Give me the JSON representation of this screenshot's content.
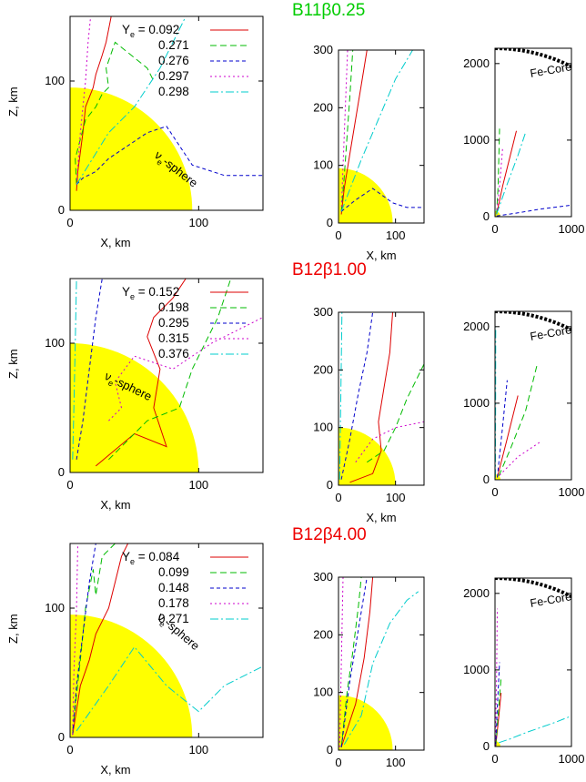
{
  "figure": {
    "x_label": "X, km",
    "z_label": "Z, km",
    "sphere_label": "ν",
    "sphere_sub": "e",
    "sphere_suffix": "-sphere",
    "fe_core_label": "Fe-Core",
    "ye_label": "Y",
    "ye_sub": "e",
    "ye_eq": " = ",
    "series_colors": [
      "#dd0000",
      "#00bb00",
      "#0000cc",
      "#cc00cc",
      "#00cccc"
    ],
    "sphere_color": "#ffff00",
    "panel_titles": [
      "B11β0.25",
      "B12β1.00",
      "B12β4.00"
    ],
    "title_colors": [
      "#00cc00",
      "#ee0000",
      "#ee0000"
    ],
    "ye_values": [
      [
        "0.092",
        "0.271",
        "0.276",
        "0.297",
        "0.298"
      ],
      [
        "0.152",
        "0.198",
        "0.295",
        "0.315",
        "0.376"
      ],
      [
        "0.084",
        "0.099",
        "0.148",
        "0.178",
        "0.271"
      ]
    ],
    "ticks": {
      "zoom_x": [
        "0",
        "100"
      ],
      "zoom_y": [
        "0",
        "100"
      ],
      "mid_x": [
        "0",
        "100"
      ],
      "mid_y": [
        "0",
        "100",
        "200",
        "300"
      ],
      "wide_x": [
        "0",
        "1000"
      ],
      "wide_y": [
        "0",
        "1000",
        "2000"
      ]
    }
  },
  "chart_data": [
    {
      "type": "line",
      "title": "B11β0.25",
      "xlabel": "X, km",
      "ylabel": "Z, km",
      "xlim": [
        0,
        150
      ],
      "ylim": [
        0,
        150
      ],
      "region": {
        "name": "ν_e-sphere",
        "radius_km": 95
      },
      "series": [
        {
          "name": "Ye = 0.092",
          "x": [
            5,
            6,
            10,
            12,
            18,
            20,
            25,
            28,
            30,
            32
          ],
          "y": [
            15,
            30,
            60,
            80,
            95,
            105,
            120,
            130,
            140,
            150
          ]
        },
        {
          "name": "Ye = 0.271",
          "x": [
            5,
            4,
            8,
            12,
            20,
            25,
            30,
            28,
            35,
            60,
            65
          ],
          "y": [
            20,
            40,
            55,
            70,
            80,
            90,
            95,
            110,
            130,
            110,
            100
          ]
        },
        {
          "name": "Ye = 0.276",
          "x": [
            5,
            10,
            20,
            30,
            45,
            60,
            75,
            95,
            120,
            150
          ],
          "y": [
            20,
            25,
            30,
            40,
            50,
            60,
            65,
            35,
            27,
            27
          ]
        },
        {
          "name": "Ye = 0.297",
          "x": [
            5,
            8,
            12,
            14,
            16
          ],
          "y": [
            20,
            60,
            100,
            130,
            150
          ]
        },
        {
          "name": "Ye = 0.298",
          "x": [
            5,
            30,
            50,
            60,
            70,
            80,
            90
          ],
          "y": [
            20,
            60,
            80,
            95,
            110,
            130,
            150
          ]
        }
      ]
    },
    {
      "type": "line",
      "title": "B11β0.25",
      "xlabel": "X, km",
      "ylabel": "",
      "xlim": [
        0,
        150
      ],
      "ylim": [
        0,
        300
      ],
      "region": {
        "name": "ν_e-sphere",
        "radius_km": 95
      },
      "series": [
        {
          "name": "Ye = 0.092",
          "x": [
            5,
            10,
            20,
            30,
            40,
            45,
            50
          ],
          "y": [
            15,
            60,
            120,
            180,
            240,
            270,
            300
          ]
        },
        {
          "name": "Ye = 0.271",
          "x": [
            5,
            10,
            15,
            20,
            25
          ],
          "y": [
            20,
            80,
            150,
            220,
            300
          ]
        },
        {
          "name": "Ye = 0.276",
          "x": [
            5,
            30,
            60,
            95,
            120,
            150
          ],
          "y": [
            20,
            40,
            60,
            35,
            27,
            27
          ]
        },
        {
          "name": "Ye = 0.297",
          "x": [
            5,
            8,
            12,
            16
          ],
          "y": [
            20,
            100,
            200,
            300
          ]
        },
        {
          "name": "Ye = 0.298",
          "x": [
            5,
            40,
            70,
            100,
            130
          ],
          "y": [
            20,
            110,
            180,
            250,
            300
          ]
        }
      ]
    },
    {
      "type": "line",
      "title": "B11β0.25",
      "xlabel": "",
      "ylabel": "",
      "xlim": [
        0,
        1000
      ],
      "ylim": [
        0,
        2200
      ],
      "region": {
        "name": "Fe-Core",
        "radius_km": 2200
      },
      "series": [
        {
          "name": "Ye = 0.092",
          "x": [
            20,
            100,
            200,
            280
          ],
          "y": [
            30,
            400,
            800,
            1120
          ]
        },
        {
          "name": "Ye = 0.271",
          "x": [
            20,
            40,
            60
          ],
          "y": [
            30,
            400,
            1150
          ]
        },
        {
          "name": "Ye = 0.276",
          "x": [
            20,
            300,
            600,
            1000
          ],
          "y": [
            10,
            50,
            100,
            150
          ]
        },
        {
          "name": "Ye = 0.297",
          "x": [
            20,
            60,
            100
          ],
          "y": [
            30,
            400,
            900
          ]
        },
        {
          "name": "Ye = 0.298",
          "x": [
            20,
            150,
            300,
            400
          ],
          "y": [
            30,
            400,
            800,
            1100
          ]
        }
      ]
    },
    {
      "type": "line",
      "title": "B12β1.00",
      "xlabel": "X, km",
      "ylabel": "Z, km",
      "xlim": [
        0,
        150
      ],
      "ylim": [
        0,
        150
      ],
      "region": {
        "name": "ν_e-sphere",
        "radius_km": 100
      },
      "series": [
        {
          "name": "Ye = 0.152",
          "x": [
            20,
            50,
            75,
            65,
            70,
            60,
            65,
            80,
            90
          ],
          "y": [
            5,
            30,
            20,
            50,
            80,
            105,
            120,
            135,
            150
          ]
        },
        {
          "name": "Ye = 0.198",
          "x": [
            30,
            60,
            85,
            95,
            105,
            115,
            120,
            125
          ],
          "y": [
            10,
            40,
            50,
            80,
            100,
            120,
            135,
            150
          ]
        },
        {
          "name": "Ye = 0.295",
          "x": [
            5,
            10,
            15,
            20,
            25
          ],
          "y": [
            10,
            40,
            80,
            120,
            150
          ]
        },
        {
          "name": "Ye = 0.315",
          "x": [
            30,
            40,
            35,
            50,
            80,
            110,
            140,
            150
          ],
          "y": [
            40,
            50,
            70,
            90,
            80,
            100,
            115,
            120
          ]
        },
        {
          "name": "Ye = 0.376",
          "x": [
            2,
            3,
            4,
            5
          ],
          "y": [
            10,
            50,
            100,
            150
          ]
        }
      ]
    },
    {
      "type": "line",
      "title": "B12β1.00",
      "xlabel": "X, km",
      "ylabel": "",
      "xlim": [
        0,
        150
      ],
      "ylim": [
        0,
        300
      ],
      "region": {
        "name": "ν_e-sphere",
        "radius_km": 100
      },
      "series": [
        {
          "name": "Ye = 0.152",
          "x": [
            20,
            60,
            75,
            70,
            80,
            90,
            95
          ],
          "y": [
            5,
            20,
            60,
            110,
            170,
            230,
            300
          ]
        },
        {
          "name": "Ye = 0.198",
          "x": [
            50,
            80,
            100,
            120,
            150
          ],
          "y": [
            40,
            60,
            100,
            150,
            210
          ]
        },
        {
          "name": "Ye = 0.295",
          "x": [
            5,
            20,
            35,
            50,
            60
          ],
          "y": [
            10,
            80,
            160,
            230,
            300
          ]
        },
        {
          "name": "Ye = 0.315",
          "x": [
            30,
            60,
            100,
            150
          ],
          "y": [
            40,
            80,
            100,
            110
          ]
        },
        {
          "name": "Ye = 0.376",
          "x": [
            2,
            4,
            6
          ],
          "y": [
            10,
            150,
            300
          ]
        }
      ]
    },
    {
      "type": "line",
      "title": "B12β1.00",
      "xlabel": "",
      "ylabel": "",
      "xlim": [
        0,
        1000
      ],
      "ylim": [
        0,
        2200
      ],
      "region": {
        "name": "Fe-Core",
        "radius_km": 2200
      },
      "series": [
        {
          "name": "Ye = 0.152",
          "x": [
            30,
            150,
            300
          ],
          "y": [
            30,
            500,
            1100
          ]
        },
        {
          "name": "Ye = 0.198",
          "x": [
            50,
            200,
            400,
            550
          ],
          "y": [
            50,
            400,
            900,
            1500
          ]
        },
        {
          "name": "Ye = 0.295",
          "x": [
            30,
            100,
            160
          ],
          "y": [
            30,
            700,
            1300
          ]
        },
        {
          "name": "Ye = 0.315",
          "x": [
            60,
            300,
            600
          ],
          "y": [
            60,
            300,
            500
          ]
        },
        {
          "name": "Ye = 0.376",
          "x": [
            5,
            8,
            10
          ],
          "y": [
            30,
            1000,
            2000
          ]
        }
      ]
    },
    {
      "type": "line",
      "title": "B12β4.00",
      "xlabel": "X, km",
      "ylabel": "Z, km",
      "xlim": [
        0,
        150
      ],
      "ylim": [
        0,
        150
      ],
      "region": {
        "name": "ν_e-sphere",
        "radius_km": 95
      },
      "series": [
        {
          "name": "Ye = 0.084",
          "x": [
            2,
            8,
            15,
            20,
            30,
            35,
            40,
            45
          ],
          "y": [
            2,
            40,
            60,
            80,
            100,
            120,
            140,
            150
          ]
        },
        {
          "name": "Ye = 0.099",
          "x": [
            2,
            8,
            12,
            18,
            20,
            25,
            35
          ],
          "y": [
            5,
            60,
            100,
            130,
            110,
            140,
            150
          ]
        },
        {
          "name": "Ye = 0.148",
          "x": [
            2,
            5,
            10,
            15,
            20
          ],
          "y": [
            2,
            40,
            80,
            120,
            150
          ]
        },
        {
          "name": "Ye = 0.178",
          "x": [
            2,
            3,
            5,
            6
          ],
          "y": [
            2,
            50,
            100,
            150
          ]
        },
        {
          "name": "Ye = 0.271",
          "x": [
            5,
            30,
            50,
            75,
            100,
            120,
            150
          ],
          "y": [
            5,
            40,
            70,
            40,
            20,
            40,
            55
          ]
        }
      ]
    },
    {
      "type": "line",
      "title": "B12β4.00",
      "xlabel": "",
      "ylabel": "",
      "xlim": [
        0,
        150
      ],
      "ylim": [
        0,
        300
      ],
      "region": {
        "name": "ν_e-sphere",
        "radius_km": 95
      },
      "series": [
        {
          "name": "Ye = 0.084",
          "x": [
            5,
            30,
            45,
            55,
            60
          ],
          "y": [
            5,
            80,
            160,
            240,
            300
          ]
        },
        {
          "name": "Ye = 0.099",
          "x": [
            5,
            15,
            25,
            35,
            40
          ],
          "y": [
            5,
            100,
            170,
            250,
            300
          ]
        },
        {
          "name": "Ye = 0.148",
          "x": [
            5,
            20,
            35,
            50
          ],
          "y": [
            5,
            120,
            210,
            300
          ]
        },
        {
          "name": "Ye = 0.178",
          "x": [
            2,
            5,
            8
          ],
          "y": [
            5,
            150,
            300
          ]
        },
        {
          "name": "Ye = 0.271",
          "x": [
            10,
            40,
            60,
            90,
            120,
            140
          ],
          "y": [
            10,
            60,
            150,
            220,
            260,
            275
          ]
        }
      ]
    },
    {
      "type": "line",
      "title": "B12β4.00",
      "xlabel": "",
      "ylabel": "",
      "xlim": [
        0,
        1000
      ],
      "ylim": [
        0,
        2200
      ],
      "region": {
        "name": "Fe-Core",
        "radius_km": 2200
      },
      "series": [
        {
          "name": "Ye = 0.084",
          "x": [
            10,
            40,
            80
          ],
          "y": [
            10,
            300,
            700
          ]
        },
        {
          "name": "Ye = 0.099",
          "x": [
            10,
            40,
            80
          ],
          "y": [
            10,
            400,
            900
          ]
        },
        {
          "name": "Ye = 0.148",
          "x": [
            10,
            30,
            60
          ],
          "y": [
            10,
            500,
            1100
          ]
        },
        {
          "name": "Ye = 0.178",
          "x": [
            5,
            20,
            30
          ],
          "y": [
            10,
            900,
            1800
          ]
        },
        {
          "name": "Ye = 0.271",
          "x": [
            50,
            200,
            400,
            600,
            800,
            1000
          ],
          "y": [
            50,
            100,
            180,
            250,
            320,
            400
          ]
        }
      ]
    }
  ]
}
